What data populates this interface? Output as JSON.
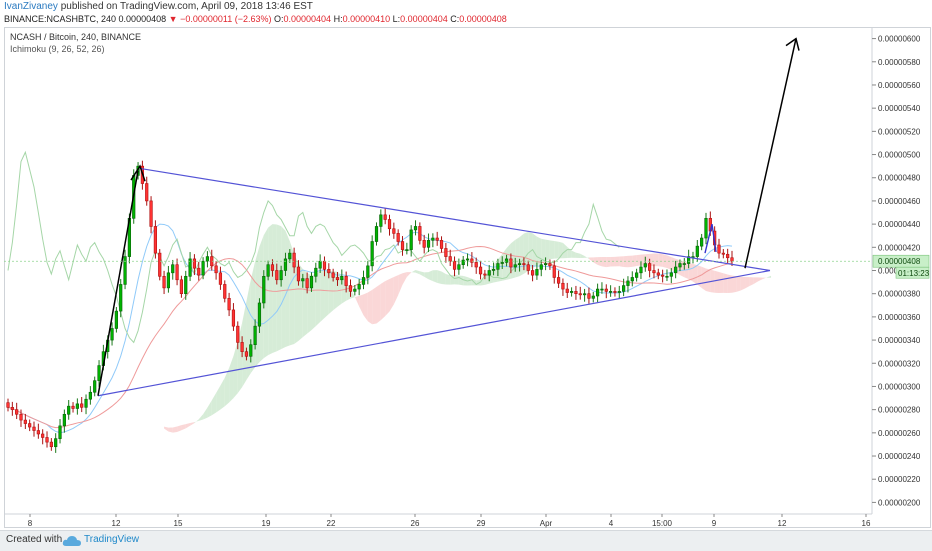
{
  "header": {
    "author": "IvanZivaney",
    "published_text": "published on TradingView.com, April 09, 2018 13:46 EST",
    "symbol": "BINANCE:NCASHBTC, 240",
    "last": "0.00000408",
    "change_arrow": "▼",
    "change": "−0.00000011 (−2.63%)",
    "o_label": "O:",
    "o_value": "0.00000404",
    "h_label": "H:",
    "h_value": "0.00000410",
    "l_label": "L:",
    "l_value": "0.00000404",
    "c_label": "C:",
    "c_value": "0.00000408"
  },
  "pane": {
    "title": "NCASH / Bitcoin, 240, BINANCE",
    "indicator": "Ichimoku (9, 26, 52, 26)"
  },
  "footer": {
    "created": "Created with",
    "brand": "TradingView"
  },
  "colors": {
    "up": "#00b300",
    "down": "#ff3333",
    "cloud_bull": "#c8e6c9",
    "cloud_bear": "#f8c9c9",
    "trendline": "#5353d6",
    "arrow": "#000000",
    "price_tag": "#c8efc8",
    "tenkan": "#90caf9",
    "kijun": "#ef9a9a",
    "chikou": "#a5d6a7"
  },
  "chart_data": {
    "type": "candlestick",
    "title": "NCASH / Bitcoin, 240, BINANCE",
    "indicator": "Ichimoku (9, 26, 52, 26)",
    "ylim": [
      1.9e-06,
      6.1e-06
    ],
    "y_ticks": [
      "0.00000200",
      "0.00000220",
      "0.00000240",
      "0.00000260",
      "0.00000280",
      "0.00000300",
      "0.00000320",
      "0.00000340",
      "0.00000360",
      "0.00000380",
      "0.00000400",
      "0.00000420",
      "0.00000440",
      "0.00000460",
      "0.00000480",
      "0.00000500",
      "0.00000520",
      "0.00000540",
      "0.00000560",
      "0.00000580",
      "0.00000600"
    ],
    "x_ticks": [
      "8",
      "12",
      "15",
      "19",
      "22",
      "26",
      "29",
      "Apr",
      "4",
      "15:00",
      "9",
      "12",
      "16"
    ],
    "last_price": "0.00000408",
    "countdown": "01:13:23",
    "candles_close": [
      2.82e-06,
      2.8e-06,
      2.76e-06,
      2.71e-06,
      2.68e-06,
      2.65e-06,
      2.62e-06,
      2.59e-06,
      2.56e-06,
      2.52e-06,
      2.48e-06,
      2.55e-06,
      2.66e-06,
      2.76e-06,
      2.83e-06,
      2.81e-06,
      2.85e-06,
      2.82e-06,
      2.89e-06,
      2.95e-06,
      3.05e-06,
      3.18e-06,
      3.3e-06,
      3.4e-06,
      3.5e-06,
      3.65e-06,
      3.88e-06,
      4.12e-06,
      4.45e-06,
      4.82e-06,
      4.9e-06,
      4.75e-06,
      4.6e-06,
      4.38e-06,
      4.15e-06,
      3.95e-06,
      3.85e-06,
      3.98e-06,
      4.05e-06,
      3.92e-06,
      3.8e-06,
      3.95e-06,
      4.1e-06,
      4.02e-06,
      3.96e-06,
      4.08e-06,
      4.12e-06,
      4.04e-06,
      3.98e-06,
      3.88e-06,
      3.76e-06,
      3.66e-06,
      3.52e-06,
      3.38e-06,
      3.3e-06,
      3.26e-06,
      3.36e-06,
      3.52e-06,
      3.72e-06,
      3.95e-06,
      4.05e-06,
      4e-06,
      3.92e-06,
      4e-06,
      4.1e-06,
      4.15e-06,
      4.03e-06,
      3.91e-06,
      3.93e-06,
      3.85e-06,
      3.95e-06,
      4.02e-06,
      4.08e-06,
      4.01e-06,
      3.98e-06,
      3.94e-06,
      3.92e-06,
      3.95e-06,
      3.87e-06,
      3.82e-06,
      3.84e-06,
      3.88e-06,
      3.94e-06,
      4.04e-06,
      4.25e-06,
      4.38e-06,
      4.48e-06,
      4.44e-06,
      4.36e-06,
      4.32e-06,
      4.25e-06,
      4.18e-06,
      4.18e-06,
      4.35e-06,
      4.38e-06,
      4.26e-06,
      4.2e-06,
      4.26e-06,
      4.28e-06,
      4.26e-06,
      4.19e-06,
      4.12e-06,
      4.08e-06,
      4.01e-06,
      4.05e-06,
      4.09e-06,
      4.1e-06,
      4.07e-06,
      4.03e-06,
      3.97e-06,
      3.96e-06,
      4e-06,
      4.01e-06,
      4.06e-06,
      4.07e-06,
      4.1e-06,
      4.03e-06,
      4.05e-06,
      4.06e-06,
      4.05e-06,
      4e-06,
      3.96e-06,
      4.01e-06,
      4.05e-06,
      4.06e-06,
      4.04e-06,
      3.94e-06,
      3.89e-06,
      3.84e-06,
      3.81e-06,
      3.82e-06,
      3.8e-06,
      3.79e-06,
      3.8e-06,
      3.76e-06,
      3.78e-06,
      3.84e-06,
      3.84e-06,
      3.82e-06,
      3.82e-06,
      3.81e-06,
      3.82e-06,
      3.87e-06,
      3.91e-06,
      3.94e-06,
      3.98e-06,
      4.03e-06,
      4.06e-06,
      4e-06,
      3.98e-06,
      3.96e-06,
      3.95e-06,
      3.95e-06,
      3.98e-06,
      4.03e-06,
      4.06e-06,
      4.06e-06,
      4.12e-06,
      4.12e-06,
      4.21e-06,
      4.28e-06,
      4.45e-06,
      4.34e-06,
      4.22e-06,
      4.15e-06,
      4.14e-06,
      4.11e-06,
      4.08e-06
    ],
    "triangle_upper": [
      [
        4.88e-06,
        0
      ],
      [
        4e-06,
        1
      ]
    ],
    "triangle_lower": [
      [
        2.92e-06,
        0
      ],
      [
        4e-06,
        1
      ]
    ],
    "forecast_arrow_target": 6e-06
  }
}
